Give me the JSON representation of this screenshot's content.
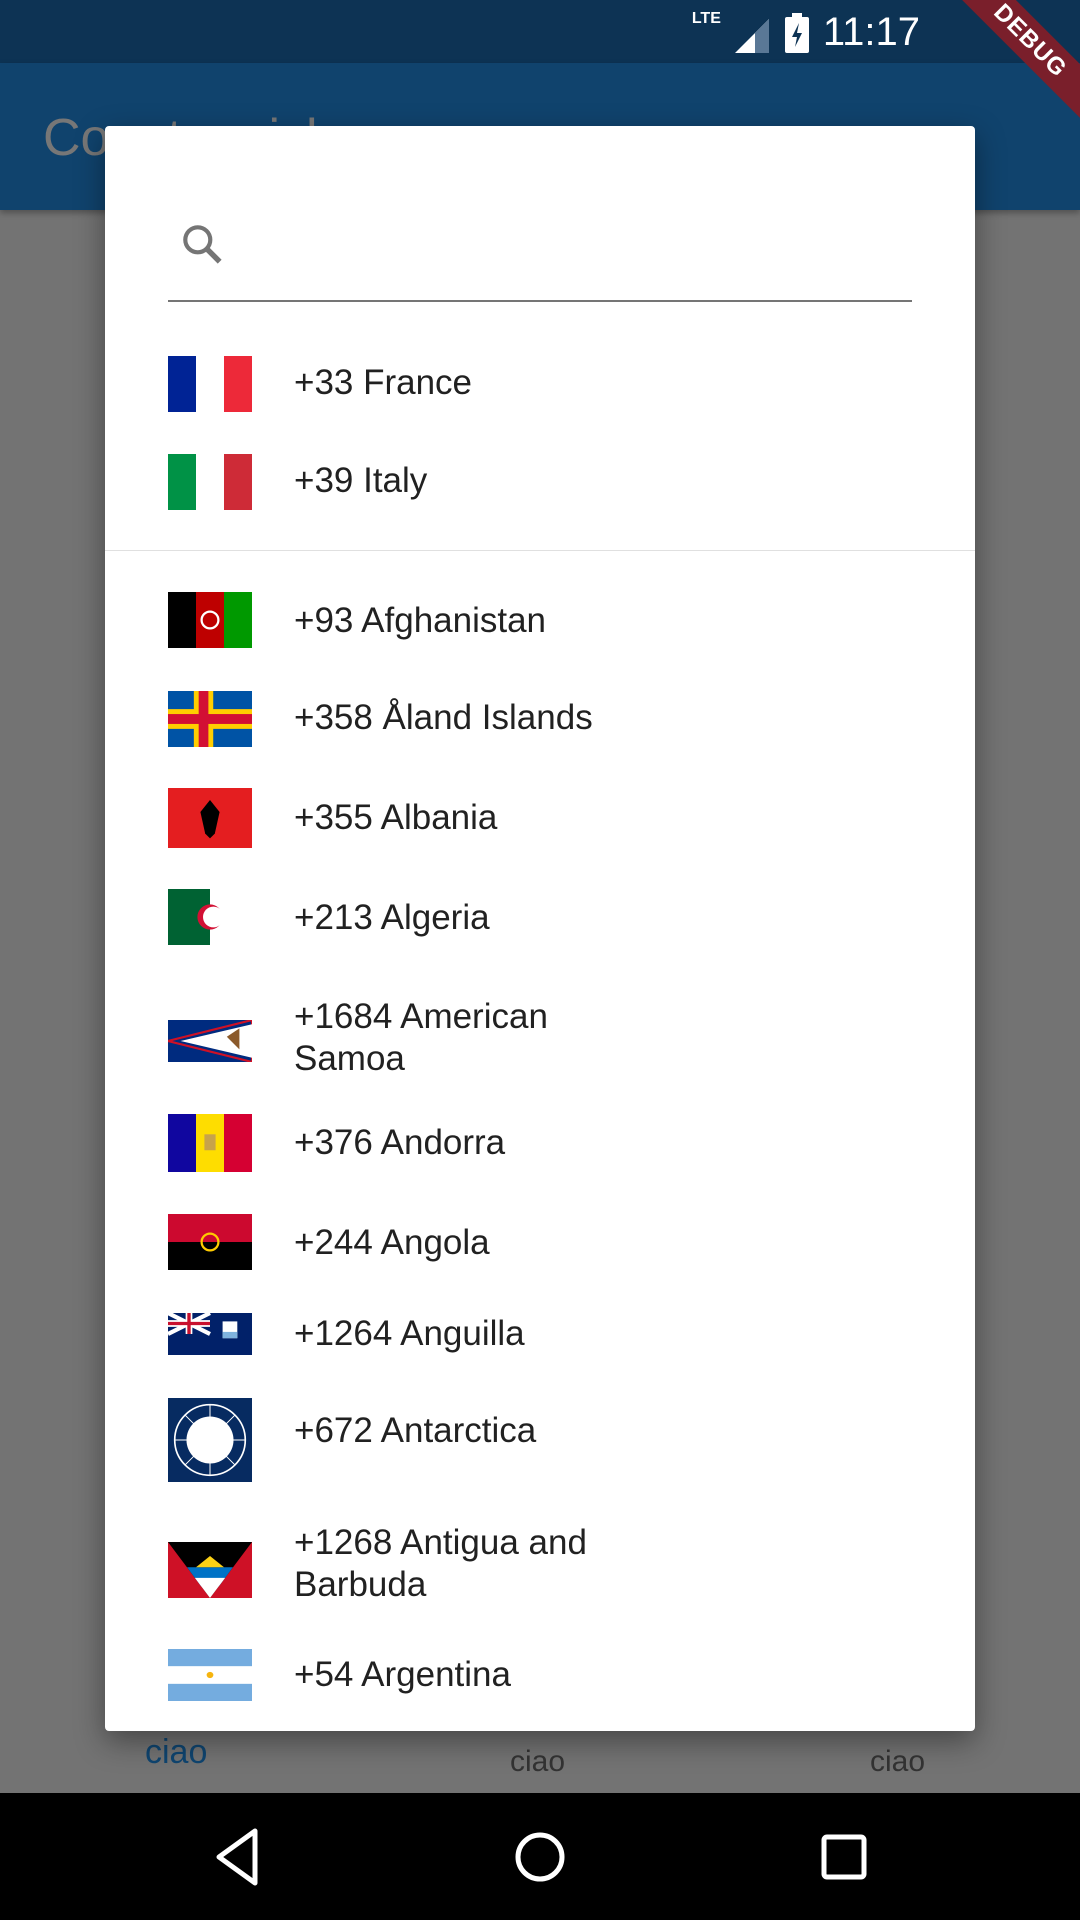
{
  "status_bar": {
    "network": "LTE",
    "time": "11:17",
    "debug_banner": "DEBUG"
  },
  "app_bar": {
    "title": "Country picker"
  },
  "colors": {
    "primary": "#2196f3",
    "scrim": "rgba(0,0,0,0.54)"
  },
  "dialog": {
    "search": {
      "icon": "search-icon",
      "value": "",
      "placeholder": ""
    },
    "favorites": [
      {
        "code": "+33",
        "name": "France",
        "label": "+33 France"
      },
      {
        "code": "+39",
        "name": "Italy",
        "label": "+39 Italy"
      }
    ],
    "countries": [
      {
        "label": "+93 Afghanistan"
      },
      {
        "label": "+358 Åland Islands"
      },
      {
        "label": "+355 Albania"
      },
      {
        "label": "+213 Algeria"
      },
      {
        "label": "+1684 American Samoa"
      },
      {
        "label": "+376 Andorra"
      },
      {
        "label": "+244 Angola"
      },
      {
        "label": "+1264 Anguilla"
      },
      {
        "label": "+672 Antarctica"
      },
      {
        "label": "+1268 Antigua and Barbuda"
      },
      {
        "label": "+54 Argentina"
      }
    ]
  },
  "bottom_tabs": [
    {
      "label": "ciao"
    },
    {
      "label": "ciao"
    },
    {
      "label": "ciao"
    }
  ],
  "nav_bar": {
    "back": "back-icon",
    "home": "home-icon",
    "recents": "recents-icon"
  }
}
